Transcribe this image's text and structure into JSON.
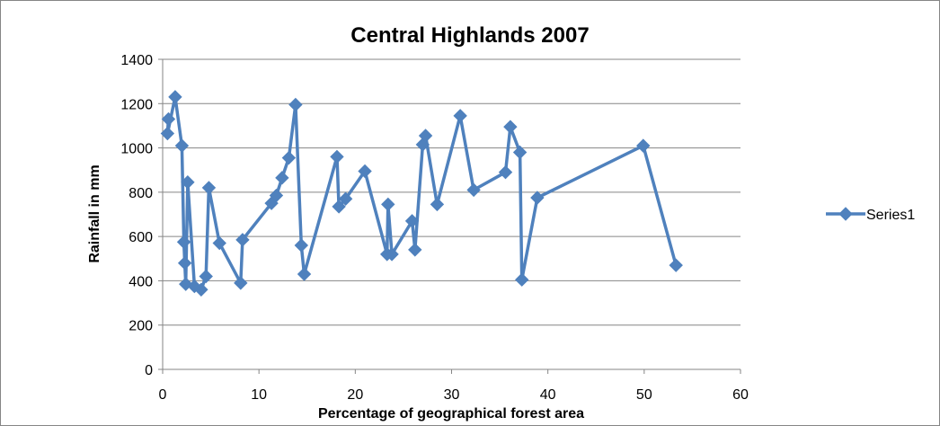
{
  "chart_data": {
    "type": "scatter",
    "title": "Central Highlands 2007",
    "xlabel": "Percentage of geographical forest area",
    "ylabel": "Rainfall in mm",
    "xlim": [
      0,
      60
    ],
    "ylim": [
      0,
      1400
    ],
    "xticks": [
      0,
      10,
      20,
      30,
      40,
      50,
      60
    ],
    "yticks": [
      0,
      200,
      400,
      600,
      800,
      1000,
      1200,
      1400
    ],
    "grid": "horizontal",
    "legend": "right",
    "color": "#4F81BD",
    "marker": "diamond",
    "lines": true,
    "series": [
      {
        "name": "Series1",
        "x": [
          0.6,
          0.5,
          1.3,
          2.0,
          2.2,
          2.3,
          2.4,
          2.6,
          3.3,
          4.0,
          4.5,
          4.8,
          5.9,
          8.1,
          8.3,
          11.3,
          11.8,
          12.4,
          13.1,
          13.8,
          14.4,
          14.7,
          18.1,
          18.3,
          19.0,
          21.0,
          23.3,
          23.4,
          23.8,
          25.9,
          26.2,
          27.0,
          27.3,
          28.5,
          30.9,
          32.3,
          35.6,
          36.1,
          37.1,
          37.3,
          38.9,
          49.9,
          53.3
        ],
        "values": [
          1130,
          1065,
          1230,
          1010,
          575,
          480,
          385,
          845,
          375,
          360,
          420,
          820,
          570,
          390,
          585,
          750,
          785,
          865,
          955,
          1195,
          560,
          430,
          960,
          735,
          770,
          895,
          520,
          745,
          520,
          670,
          540,
          1015,
          1055,
          745,
          1145,
          810,
          890,
          1095,
          980,
          405,
          775,
          1010,
          470
        ]
      }
    ]
  }
}
